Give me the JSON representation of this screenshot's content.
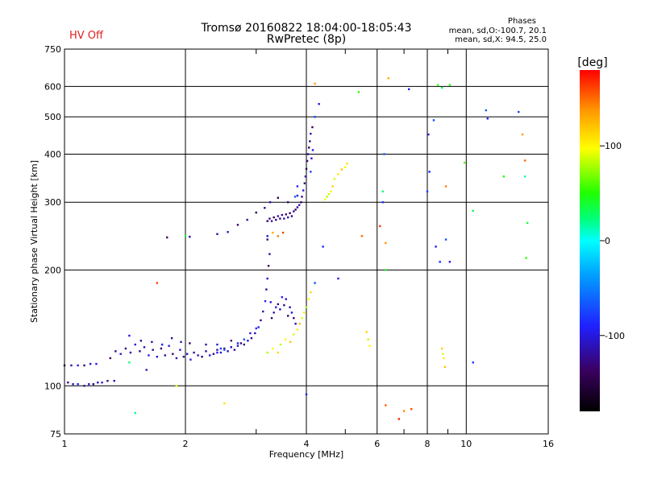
{
  "header": {
    "hv_status": "HV Off",
    "title_line1": "Tromsø 20160822 18:04:00-18:05:43",
    "title_line2": "RwPretec (8p)"
  },
  "phases_box": {
    "title": "Phases",
    "o_stats": "mean, sd,O:-100.7, 20.1",
    "x_stats": "mean, sd,X:  94.5, 25.0"
  },
  "colorbar": {
    "label": "[deg]",
    "min": -180,
    "max": 180,
    "ticks": [
      {
        "value": 100,
        "label": "100"
      },
      {
        "value": 0,
        "label": "0"
      },
      {
        "value": -100,
        "label": "-100"
      }
    ]
  },
  "chart_data": {
    "type": "scatter",
    "title": "Tromsø 20160822 18:04:00-18:05:43",
    "subtitle": "RwPretec (8p)",
    "xlabel": "Frequency [MHz]",
    "ylabel": "Stationary phase Virtual Height [km]",
    "xscale": "log",
    "yscale": "log",
    "xlim": [
      1,
      16
    ],
    "ylim": [
      75,
      750
    ],
    "grid": true,
    "x_major_ticks": [
      {
        "value": 1,
        "label": "1"
      },
      {
        "value": 2,
        "label": "2"
      },
      {
        "value": 4,
        "label": "4"
      },
      {
        "value": 6,
        "label": "6"
      },
      {
        "value": 8,
        "label": "8"
      },
      {
        "value": 10,
        "label": "10"
      },
      {
        "value": 16,
        "label": "16"
      }
    ],
    "x_minor_ticks": [
      3,
      5,
      7,
      9
    ],
    "y_major_ticks": [
      {
        "value": 75,
        "label": "75"
      },
      {
        "value": 100,
        "label": "100"
      },
      {
        "value": 200,
        "label": "200"
      },
      {
        "value": 300,
        "label": "300"
      },
      {
        "value": 400,
        "label": "400"
      },
      {
        "value": 500,
        "label": "500"
      },
      {
        "value": 600,
        "label": "600"
      },
      {
        "value": 750,
        "label": "750"
      }
    ],
    "color_by": "phase [deg]",
    "series": [
      {
        "key": "o_low_layer",
        "phase": -110,
        "points": [
          [
            1.0,
            113
          ],
          [
            1.04,
            113
          ],
          [
            1.08,
            113
          ],
          [
            1.12,
            113
          ],
          [
            1.16,
            114
          ],
          [
            1.2,
            114
          ],
          [
            1.02,
            102
          ],
          [
            1.05,
            101
          ],
          [
            1.08,
            101
          ],
          [
            1.12,
            100
          ],
          [
            1.15,
            101
          ],
          [
            1.18,
            101
          ],
          [
            1.21,
            102
          ],
          [
            1.24,
            102
          ],
          [
            1.28,
            103
          ],
          [
            1.33,
            103
          ]
        ]
      },
      {
        "key": "o_e_region",
        "phase": -115,
        "points": [
          [
            1.3,
            118
          ],
          [
            1.34,
            123
          ],
          [
            1.38,
            121
          ],
          [
            1.42,
            125
          ],
          [
            1.46,
            122
          ],
          [
            1.5,
            128
          ],
          [
            1.54,
            123
          ],
          [
            1.58,
            126
          ],
          [
            1.62,
            120
          ],
          [
            1.66,
            124
          ],
          [
            1.7,
            119
          ],
          [
            1.74,
            125
          ],
          [
            1.78,
            120
          ],
          [
            1.82,
            127
          ],
          [
            1.86,
            121
          ],
          [
            1.9,
            118
          ],
          [
            1.94,
            124
          ],
          [
            1.98,
            119
          ],
          [
            2.02,
            121
          ],
          [
            2.06,
            117
          ],
          [
            2.1,
            122
          ],
          [
            2.15,
            120
          ],
          [
            2.2,
            119
          ],
          [
            2.25,
            123
          ],
          [
            2.3,
            120
          ],
          [
            2.35,
            121
          ],
          [
            2.4,
            124
          ],
          [
            2.45,
            122
          ],
          [
            2.5,
            125
          ],
          [
            2.55,
            123
          ],
          [
            2.6,
            126
          ],
          [
            2.65,
            124
          ],
          [
            2.7,
            127
          ],
          [
            2.75,
            129
          ],
          [
            2.8,
            128
          ],
          [
            2.86,
            131
          ],
          [
            2.92,
            133
          ],
          [
            2.98,
            137
          ],
          [
            3.04,
            142
          ],
          [
            3.08,
            148
          ],
          [
            3.12,
            156
          ],
          [
            3.16,
            166
          ],
          [
            3.18,
            178
          ],
          [
            3.2,
            190
          ],
          [
            3.22,
            205
          ],
          [
            3.24,
            220
          ],
          [
            3.26,
            165
          ],
          [
            3.28,
            150
          ],
          [
            3.32,
            155
          ],
          [
            3.36,
            160
          ],
          [
            3.4,
            163
          ],
          [
            3.44,
            158
          ],
          [
            3.48,
            170
          ],
          [
            3.52,
            162
          ],
          [
            3.56,
            168
          ],
          [
            3.6,
            152
          ],
          [
            3.64,
            160
          ],
          [
            3.68,
            155
          ],
          [
            3.72,
            150
          ],
          [
            3.76,
            145
          ],
          [
            1.45,
            135
          ],
          [
            1.55,
            131
          ],
          [
            1.65,
            130
          ],
          [
            1.75,
            128
          ],
          [
            1.85,
            133
          ],
          [
            1.95,
            130
          ],
          [
            2.05,
            129
          ],
          [
            2.25,
            128
          ],
          [
            2.4,
            128
          ],
          [
            2.6,
            131
          ]
        ]
      },
      {
        "key": "o_f_region",
        "phase": -125,
        "points": [
          [
            3.2,
            268
          ],
          [
            3.24,
            272
          ],
          [
            3.28,
            268
          ],
          [
            3.32,
            274
          ],
          [
            3.36,
            270
          ],
          [
            3.4,
            276
          ],
          [
            3.44,
            272
          ],
          [
            3.48,
            278
          ],
          [
            3.52,
            272
          ],
          [
            3.56,
            279
          ],
          [
            3.6,
            274
          ],
          [
            3.64,
            281
          ],
          [
            3.68,
            276
          ],
          [
            3.72,
            284
          ],
          [
            3.76,
            287
          ],
          [
            3.8,
            291
          ],
          [
            3.84,
            295
          ],
          [
            3.88,
            300
          ],
          [
            3.9,
            310
          ],
          [
            3.93,
            322
          ],
          [
            3.96,
            336
          ],
          [
            3.98,
            350
          ],
          [
            4.0,
            366
          ],
          [
            4.02,
            384
          ],
          [
            4.04,
            400
          ],
          [
            4.06,
            416
          ],
          [
            4.08,
            432
          ],
          [
            4.1,
            452
          ],
          [
            4.14,
            470
          ],
          [
            2.4,
            248
          ],
          [
            2.55,
            251
          ],
          [
            2.7,
            262
          ],
          [
            2.85,
            270
          ],
          [
            3.0,
            282
          ],
          [
            3.15,
            290
          ],
          [
            3.25,
            300
          ],
          [
            3.4,
            308
          ],
          [
            3.6,
            300
          ],
          [
            3.8,
            312
          ],
          [
            1.8,
            243
          ],
          [
            2.05,
            244
          ],
          [
            3.2,
            245
          ],
          [
            3.2,
            240
          ]
        ]
      },
      {
        "key": "o_blue_points",
        "phase": -85,
        "points": [
          [
            2.6,
            126
          ],
          [
            2.7,
            129
          ],
          [
            2.8,
            132
          ],
          [
            2.9,
            137
          ],
          [
            3.0,
            141
          ],
          [
            2.5,
            124
          ],
          [
            2.4,
            122
          ],
          [
            2.45,
            125
          ],
          [
            3.75,
            310
          ],
          [
            3.8,
            330
          ],
          [
            4.1,
            360
          ],
          [
            4.12,
            390
          ],
          [
            4.15,
            410
          ],
          [
            4.2,
            500
          ],
          [
            4.3,
            540
          ],
          [
            4.4,
            230
          ],
          [
            4.2,
            185
          ],
          [
            4.8,
            190
          ],
          [
            6.2,
            300
          ],
          [
            6.25,
            400
          ],
          [
            7.2,
            590
          ],
          [
            8.0,
            320
          ],
          [
            8.05,
            450
          ],
          [
            8.1,
            360
          ],
          [
            8.3,
            490
          ],
          [
            8.4,
            230
          ],
          [
            8.6,
            210
          ],
          [
            8.9,
            240
          ],
          [
            9.1,
            210
          ],
          [
            10.4,
            115
          ],
          [
            11.2,
            520
          ],
          [
            11.3,
            495
          ],
          [
            13.5,
            515
          ],
          [
            1.6,
            110
          ],
          [
            4.0,
            95
          ]
        ]
      },
      {
        "key": "x_traces",
        "phase": 100,
        "points": [
          [
            3.2,
            122
          ],
          [
            3.3,
            125
          ],
          [
            3.4,
            122
          ],
          [
            3.45,
            128
          ],
          [
            3.55,
            132
          ],
          [
            3.65,
            130
          ],
          [
            3.72,
            136
          ],
          [
            3.8,
            140
          ],
          [
            3.85,
            145
          ],
          [
            3.9,
            150
          ],
          [
            3.95,
            155
          ],
          [
            4.0,
            160
          ],
          [
            4.05,
            168
          ],
          [
            4.1,
            175
          ],
          [
            4.55,
            315
          ],
          [
            4.6,
            320
          ],
          [
            4.65,
            330
          ],
          [
            4.7,
            345
          ],
          [
            4.8,
            355
          ],
          [
            4.9,
            365
          ],
          [
            5.0,
            370
          ],
          [
            5.05,
            378
          ],
          [
            4.5,
            310
          ],
          [
            4.45,
            305
          ],
          [
            5.65,
            138
          ],
          [
            5.7,
            132
          ],
          [
            5.75,
            127
          ],
          [
            8.7,
            125
          ],
          [
            8.75,
            121
          ],
          [
            8.8,
            118
          ],
          [
            8.85,
            112
          ],
          [
            1.9,
            100
          ],
          [
            2.5,
            90
          ]
        ]
      },
      {
        "key": "x_orange_points",
        "phase": 150,
        "points": [
          [
            3.3,
            250
          ],
          [
            3.4,
            245
          ],
          [
            3.5,
            250
          ],
          [
            4.2,
            610
          ],
          [
            5.5,
            245
          ],
          [
            6.1,
            260
          ],
          [
            6.3,
            235
          ],
          [
            6.3,
            89
          ],
          [
            6.8,
            82
          ],
          [
            7.0,
            86
          ],
          [
            7.3,
            87
          ],
          [
            6.4,
            630
          ],
          [
            8.9,
            330
          ],
          [
            1.7,
            185
          ],
          [
            13.8,
            450
          ],
          [
            14.0,
            385
          ]
        ]
      },
      {
        "key": "scattered_cyan_green",
        "phase": 40,
        "points": [
          [
            1.5,
            85
          ],
          [
            2.0,
            245
          ],
          [
            5.4,
            580
          ],
          [
            6.2,
            320
          ],
          [
            6.3,
            200
          ],
          [
            8.5,
            605
          ],
          [
            8.7,
            595
          ],
          [
            9.1,
            605
          ],
          [
            9.9,
            380
          ],
          [
            10.4,
            285
          ],
          [
            12.4,
            350
          ],
          [
            14.0,
            350
          ],
          [
            14.2,
            265
          ],
          [
            14.1,
            215
          ],
          [
            1.45,
            115
          ]
        ]
      }
    ]
  }
}
